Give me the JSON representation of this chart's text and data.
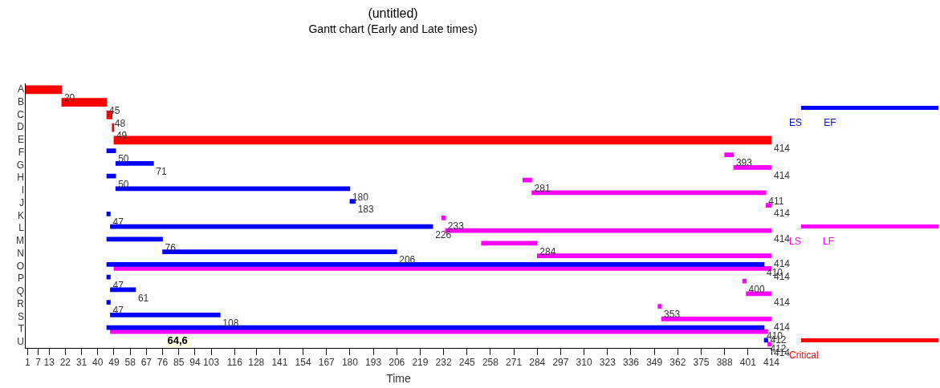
{
  "chart_data": {
    "type": "bar",
    "orientation": "horizontal",
    "title": "(untitled)",
    "subtitle": "Gantt chart (Early and Late times)",
    "xlabel": "Time",
    "categories": [
      "A",
      "B",
      "C",
      "D",
      "E",
      "F",
      "G",
      "H",
      "I",
      "J",
      "K",
      "L",
      "M",
      "N",
      "O",
      "P",
      "Q",
      "R",
      "S",
      "T",
      "U"
    ],
    "series": [
      {
        "name": "ES EF",
        "color": "#0000ff",
        "base": [
          null,
          null,
          null,
          null,
          null,
          45,
          50,
          45,
          50,
          180,
          45,
          47,
          45,
          76,
          45,
          45,
          47,
          45,
          47,
          45,
          410
        ],
        "values": [
          null,
          null,
          null,
          null,
          null,
          5,
          21,
          5,
          130,
          3,
          2,
          179,
          31,
          130,
          365,
          2,
          14,
          2,
          61,
          365,
          2
        ],
        "value_labels": [
          null,
          null,
          null,
          null,
          null,
          "50",
          "71",
          "50",
          "180",
          "183",
          "47",
          "226",
          "76",
          "206",
          "410",
          "47",
          "61",
          "47",
          "108",
          "410",
          "412"
        ]
      },
      {
        "name": "LS LF",
        "color": "#ff00ff",
        "base": [
          null,
          null,
          null,
          null,
          null,
          388,
          393,
          276,
          281,
          411,
          231,
          233,
          253,
          284,
          49,
          398,
          400,
          351,
          353,
          47,
          412
        ],
        "values": [
          null,
          null,
          null,
          null,
          null,
          5,
          21,
          5,
          130,
          3,
          2,
          181,
          31,
          130,
          365,
          2,
          14,
          2,
          61,
          365,
          2
        ],
        "value_labels": [
          null,
          null,
          null,
          null,
          null,
          "393",
          "414",
          "281",
          "411",
          "414",
          "233",
          "414",
          "284",
          "414",
          "414",
          "400",
          "414",
          "353",
          "414",
          "412",
          "414"
        ]
      },
      {
        "name": "Critical",
        "color": "#ff0000",
        "base": [
          0,
          20,
          45,
          48,
          49,
          null,
          null,
          null,
          null,
          null,
          null,
          null,
          null,
          null,
          null,
          null,
          null,
          null,
          null,
          null,
          null
        ],
        "values": [
          20,
          25,
          3,
          1,
          365,
          null,
          null,
          null,
          null,
          null,
          null,
          null,
          null,
          null,
          null,
          null,
          null,
          null,
          null,
          null,
          null
        ],
        "value_labels": [
          "20",
          "45",
          "48",
          "49",
          "414",
          null,
          null,
          null,
          null,
          null,
          null,
          null,
          null,
          null,
          null,
          null,
          null,
          null,
          null,
          null,
          null
        ]
      }
    ],
    "xlim": [
      0,
      414
    ],
    "xticks": [
      1,
      7,
      13,
      22,
      31,
      40,
      49,
      58,
      67,
      76,
      85,
      94,
      103,
      116,
      128,
      141,
      154,
      167,
      180,
      193,
      206,
      219,
      232,
      245,
      258,
      271,
      284,
      297,
      310,
      323,
      336,
      349,
      362,
      375,
      388,
      401,
      414
    ],
    "grid": false,
    "legend": "right",
    "annotations": [
      "64,6"
    ]
  }
}
